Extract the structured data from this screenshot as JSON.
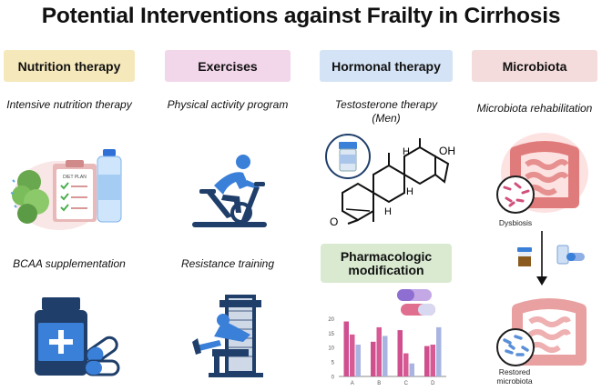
{
  "title": "Potential Interventions against Frailty in Cirrhosis",
  "columns": [
    {
      "header": "Nutrition therapy",
      "color": "#f5e8bb",
      "items": [
        "Intensive nutrition therapy",
        "BCAA supplementation"
      ]
    },
    {
      "header": "Exercises",
      "color": "#f2d6ea",
      "items": [
        "Physical activity program",
        "Resistance training"
      ]
    },
    {
      "header": "Hormonal therapy",
      "color": "#d4e3f5",
      "items": [
        "Testosterone therapy (Men)",
        "Pharmacologic modification"
      ]
    },
    {
      "header": "Microbiota",
      "color": "#f5dcdc",
      "items": [
        "Microbiota rehabilitation"
      ]
    }
  ],
  "diet_plan_label": "DIET PLAN",
  "molecule_labels": {
    "oh": "OH",
    "h": "H",
    "o": "O"
  },
  "microbiota_labels": {
    "dysbiosis": "Dysbiosis",
    "restored": "Restored microbiota"
  },
  "icons": [
    "diet-plan-clipboard-icon",
    "water-bottle-icon",
    "cycling-person-icon",
    "pill-bottle-icon",
    "capsules-icon",
    "leg-press-machine-icon",
    "testosterone-vial-icon",
    "steroid-molecule-icon",
    "intestine-icon",
    "stool-sample-cup-icon",
    "arrow-down-icon"
  ],
  "colors": {
    "pink_bar": "#cf4f8f",
    "lavender_bar": "#a9b4e0",
    "icon_navy": "#1f3f6a",
    "icon_blue": "#3a7fd8"
  },
  "chart_data": {
    "type": "bar",
    "categories": [
      "A",
      "B",
      "C",
      "D"
    ],
    "series": [
      {
        "values": [
          19,
          12,
          16,
          10.5
        ]
      },
      {
        "values": [
          14.5,
          17,
          8,
          11
        ]
      },
      {
        "values": [
          11,
          14,
          4.5,
          17
        ]
      }
    ],
    "yticks": [
      0,
      5,
      10,
      15,
      20
    ],
    "ylim": [
      0,
      22
    ],
    "series_colors": [
      "#cf4f8f",
      "#d75a95",
      "#a9b4e0"
    ],
    "grid": false
  }
}
